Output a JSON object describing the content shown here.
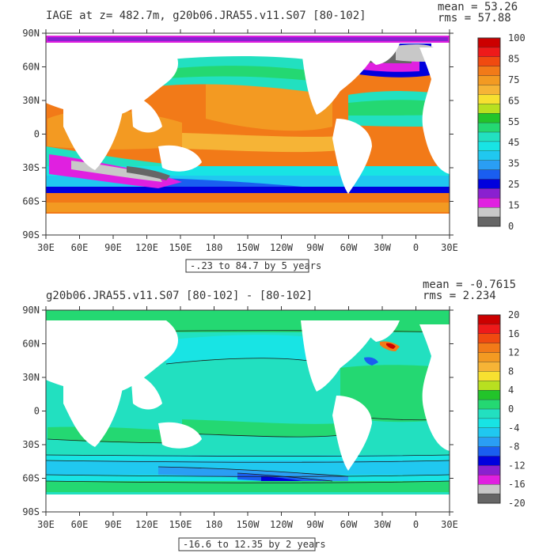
{
  "panels": [
    {
      "title": "IAGE at z= 482.7m, g20b06.JRA55.v11.S07 [80-102]",
      "stats": {
        "mean": "mean = 53.26",
        "rms": "rms = 57.88"
      },
      "y_ticks": [
        "90N",
        "60N",
        "30N",
        "0",
        "30S",
        "60S",
        "90S"
      ],
      "x_ticks": [
        "30E",
        "60E",
        "90E",
        "120E",
        "150E",
        "180",
        "150W",
        "120W",
        "90W",
        "60W",
        "30W",
        "0",
        "30E"
      ],
      "range_label": "-.23 to 84.7 by 5 years",
      "colorbar": {
        "labels": [
          "100",
          "85",
          "75",
          "65",
          "55",
          "45",
          "35",
          "25",
          "15",
          "0"
        ],
        "colors": [
          "#cc0000",
          "#ee1a1a",
          "#f04a10",
          "#f27a18",
          "#f39a22",
          "#f6b436",
          "#f7e030",
          "#b8e020",
          "#22c42a",
          "#24d872",
          "#22e0c0",
          "#18e4e4",
          "#20c8f0",
          "#2a9ef4",
          "#1a5ef0",
          "#0000dd",
          "#8a20d0",
          "#e020e0",
          "#c8c8c8",
          "#666666"
        ]
      }
    },
    {
      "title": "g20b06.JRA55.v11.S07 [80-102] - [80-102]",
      "stats": {
        "mean": "mean = -0.7615",
        "rms": "rms = 2.234"
      },
      "y_ticks": [
        "90N",
        "60N",
        "30N",
        "0",
        "30S",
        "60S",
        "90S"
      ],
      "x_ticks": [
        "30E",
        "60E",
        "90E",
        "120E",
        "150E",
        "180",
        "150W",
        "120W",
        "90W",
        "60W",
        "30W",
        "0",
        "30E"
      ],
      "range_label": "-16.6 to 12.35 by 2 years",
      "colorbar": {
        "labels": [
          "20",
          "16",
          "12",
          "8",
          "4",
          "0",
          "-4",
          "-8",
          "-12",
          "-16",
          "-20"
        ],
        "colors": [
          "#cc0000",
          "#ee1a1a",
          "#f04a10",
          "#f27a18",
          "#f39a22",
          "#f6b436",
          "#f7e030",
          "#b8e020",
          "#22c42a",
          "#24d872",
          "#22e0c0",
          "#18e4e4",
          "#20c8f0",
          "#2a9ef4",
          "#1a5ef0",
          "#0000dd",
          "#8a20d0",
          "#e020e0",
          "#c8c8c8",
          "#666666"
        ]
      }
    }
  ],
  "colors": {
    "land": "#ffffff",
    "frame": "#333333",
    "contour": "#1a1a1a"
  }
}
